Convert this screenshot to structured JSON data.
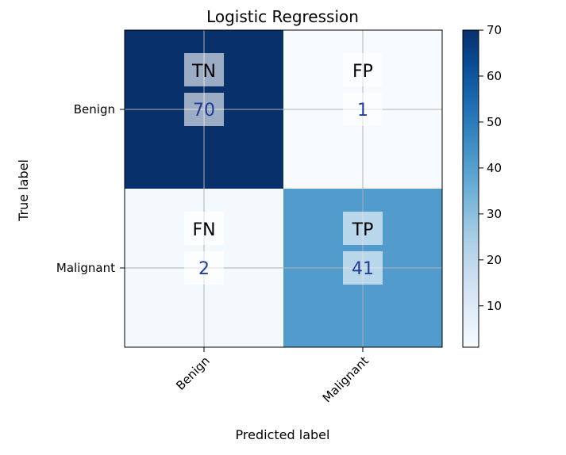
{
  "chart_data": {
    "type": "heatmap",
    "title": "Logistic Regression",
    "xlabel": "Predicted label",
    "ylabel": "True label",
    "x_categories": [
      "Benign",
      "Malignant"
    ],
    "y_categories": [
      "Benign",
      "Malignant"
    ],
    "values": [
      [
        70,
        1
      ],
      [
        2,
        41
      ]
    ],
    "cell_labels": [
      [
        "TN",
        "FP"
      ],
      [
        "FN",
        "TP"
      ]
    ],
    "colormap": "Blues",
    "colorbar": {
      "range": [
        1,
        70
      ],
      "ticks": [
        10,
        20,
        30,
        40,
        50,
        60,
        70
      ]
    },
    "grid": true
  }
}
